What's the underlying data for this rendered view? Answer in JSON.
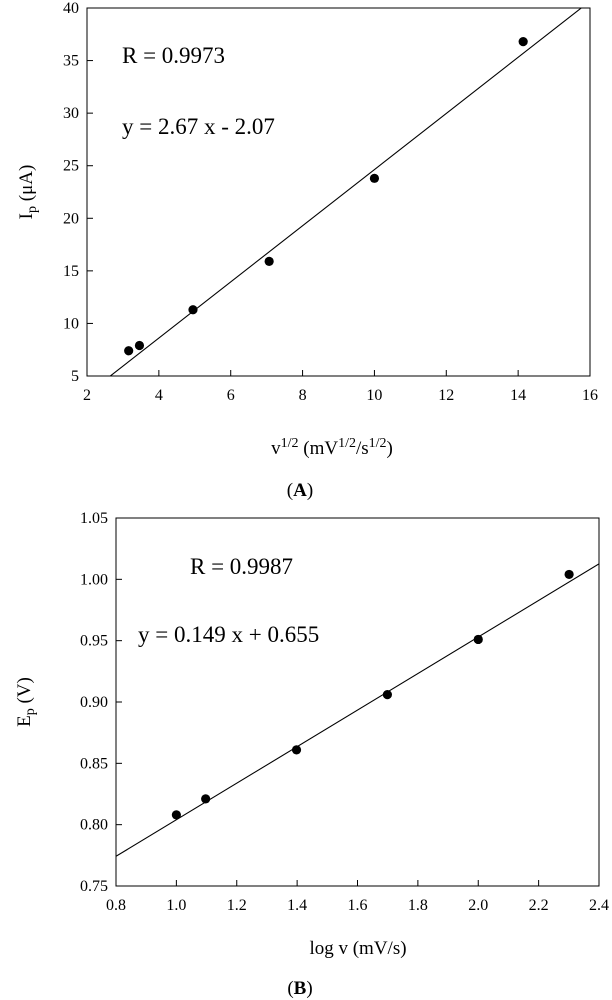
{
  "chart_data": [
    {
      "panel": "A",
      "type": "scatter",
      "caption": "(A)",
      "caption_letter": "A",
      "xlabel": "v1/2 (mV1/2/s1/2)",
      "xlabel_parts": {
        "base": "v",
        "sup1": "1/2",
        "mid": " (mV",
        "sup2": "1/2",
        "mid2": "/s",
        "sup3": "1/2",
        "end": ")"
      },
      "ylabel": "Ip (μA)",
      "ylabel_parts": {
        "base": "I",
        "sub": "p",
        "end": " (μA)"
      },
      "xlim": [
        2,
        16
      ],
      "ylim": [
        5,
        40
      ],
      "xticks": [
        2,
        4,
        6,
        8,
        10,
        12,
        14,
        16
      ],
      "yticks": [
        5,
        10,
        15,
        20,
        25,
        30,
        35,
        40
      ],
      "tick_decimals": 0,
      "points": [
        {
          "x": 3.16,
          "y": 7.4
        },
        {
          "x": 3.46,
          "y": 7.9
        },
        {
          "x": 4.95,
          "y": 11.3
        },
        {
          "x": 7.07,
          "y": 15.9
        },
        {
          "x": 10.0,
          "y": 23.8
        },
        {
          "x": 14.14,
          "y": 36.8
        }
      ],
      "fit": {
        "slope": 2.67,
        "intercept": -2.07
      },
      "annotations": {
        "r": "R = 0.9973",
        "equation": "y = 2.67 x - 2.07"
      },
      "grid": false
    },
    {
      "panel": "B",
      "type": "scatter",
      "caption": "(B)",
      "caption_letter": "B",
      "xlabel": "log v (mV/s)",
      "ylabel": "Ep (V)",
      "ylabel_parts": {
        "base": "E",
        "sub": "p",
        "end": " (V)"
      },
      "xlim": [
        0.8,
        2.4
      ],
      "ylim": [
        0.75,
        1.05
      ],
      "xticks": [
        0.8,
        1.0,
        1.2,
        1.4,
        1.6,
        1.8,
        2.0,
        2.2,
        2.4
      ],
      "yticks": [
        0.75,
        0.8,
        0.85,
        0.9,
        0.95,
        1.0,
        1.05
      ],
      "xtick_decimals": 1,
      "ytick_decimals": 2,
      "points": [
        {
          "x": 1.0,
          "y": 0.808
        },
        {
          "x": 1.097,
          "y": 0.821
        },
        {
          "x": 1.398,
          "y": 0.861
        },
        {
          "x": 1.699,
          "y": 0.906
        },
        {
          "x": 2.0,
          "y": 0.951
        },
        {
          "x": 2.301,
          "y": 1.004
        }
      ],
      "fit": {
        "slope": 0.149,
        "intercept": 0.655
      },
      "annotations": {
        "r": "R = 0.9987",
        "equation": "y = 0.149 x + 0.655"
      },
      "grid": false
    }
  ]
}
